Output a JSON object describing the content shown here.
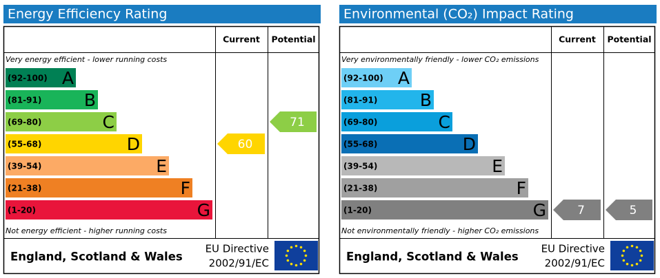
{
  "panels": [
    {
      "title": "Energy Efficiency Rating",
      "columns": [
        "Current",
        "Potential"
      ],
      "top_note": "Very energy efficient - lower running costs",
      "bottom_note": "Not energy efficient - higher running costs",
      "bands": [
        {
          "range": "(92-100)",
          "letter": "A",
          "color": "#008054"
        },
        {
          "range": "(81-91)",
          "letter": "B",
          "color": "#19b459"
        },
        {
          "range": "(69-80)",
          "letter": "C",
          "color": "#8dce46"
        },
        {
          "range": "(55-68)",
          "letter": "D",
          "color": "#ffd500"
        },
        {
          "range": "(39-54)",
          "letter": "E",
          "color": "#fcaa65"
        },
        {
          "range": "(21-38)",
          "letter": "F",
          "color": "#ef8023"
        },
        {
          "range": "(1-20)",
          "letter": "G",
          "color": "#e9153b"
        }
      ],
      "current": 60,
      "potential": 71,
      "region": "England, Scotland & Wales",
      "directive": [
        "EU Directive",
        "2002/91/EC"
      ]
    },
    {
      "title": "Environmental (CO₂) Impact Rating",
      "columns": [
        "Current",
        "Potential"
      ],
      "top_note": "Very environmentally friendly - lower CO₂ emissions",
      "bottom_note": "Not environmentally friendly - higher CO₂ emissions",
      "bands": [
        {
          "range": "(92-100)",
          "letter": "A",
          "color": "#6ecff6"
        },
        {
          "range": "(81-91)",
          "letter": "B",
          "color": "#22b5eb"
        },
        {
          "range": "(69-80)",
          "letter": "C",
          "color": "#0a9fdc"
        },
        {
          "range": "(55-68)",
          "letter": "D",
          "color": "#0a6fb5"
        },
        {
          "range": "(39-54)",
          "letter": "E",
          "color": "#b8b8b8"
        },
        {
          "range": "(21-38)",
          "letter": "F",
          "color": "#a0a0a0"
        },
        {
          "range": "(1-20)",
          "letter": "G",
          "color": "#808080"
        }
      ],
      "current": 7,
      "potential": 5,
      "region": "England, Scotland & Wales",
      "directive": [
        "EU Directive",
        "2002/91/EC"
      ]
    }
  ]
}
